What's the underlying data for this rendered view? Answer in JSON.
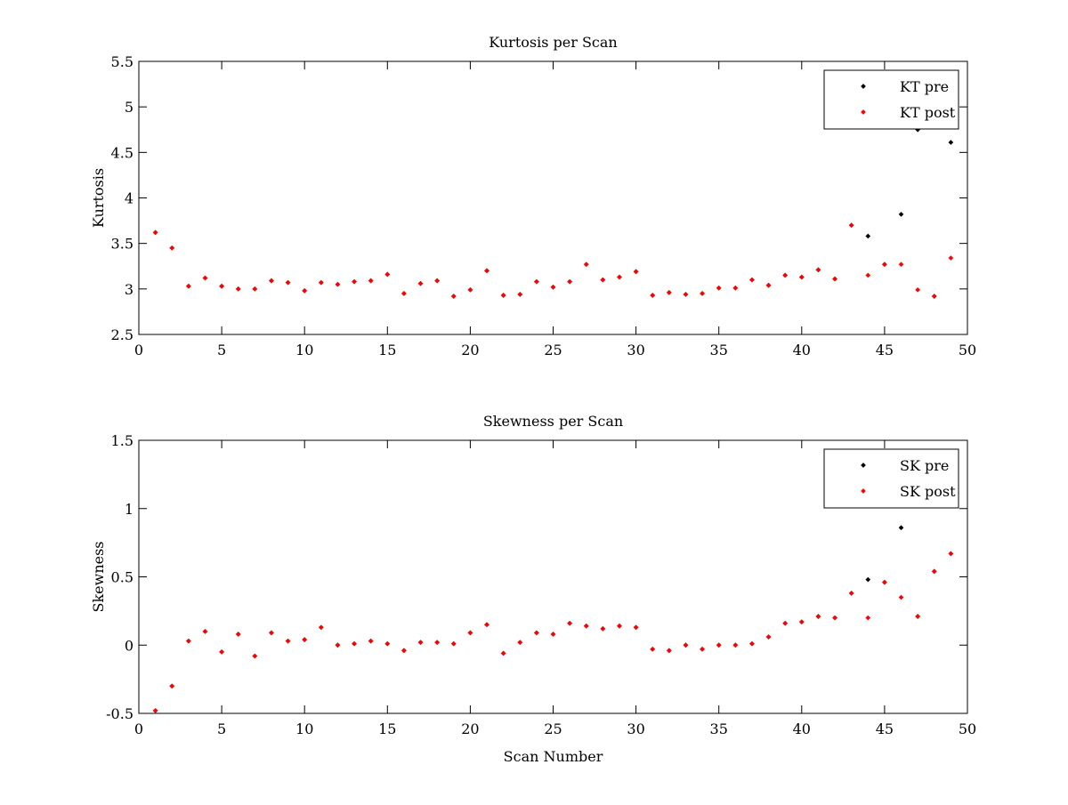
{
  "chart_data": [
    {
      "type": "scatter",
      "title": "Kurtosis per Scan",
      "xlabel": "",
      "ylabel": "Kurtosis",
      "xlim": [
        0,
        50
      ],
      "ylim": [
        2.5,
        5.5
      ],
      "xticks": [
        "0",
        "5",
        "10",
        "15",
        "20",
        "25",
        "30",
        "35",
        "40",
        "45",
        "50"
      ],
      "yticks": [
        "2.5",
        "3",
        "3.5",
        "4",
        "4.5",
        "5",
        "5.5"
      ],
      "legend_position": "top-right",
      "grid": false,
      "series": [
        {
          "name": "KT pre",
          "color": "#000000",
          "x": [
            1,
            2,
            3,
            4,
            5,
            6,
            7,
            8,
            9,
            10,
            11,
            12,
            13,
            14,
            15,
            16,
            17,
            18,
            19,
            20,
            21,
            22,
            23,
            24,
            25,
            26,
            27,
            28,
            29,
            30,
            31,
            32,
            33,
            34,
            35,
            36,
            37,
            38,
            39,
            40,
            41,
            42,
            43,
            44,
            45,
            46,
            47,
            48,
            49
          ],
          "y": [
            3.62,
            3.45,
            3.03,
            3.12,
            3.03,
            3.0,
            3.0,
            3.09,
            3.07,
            2.98,
            3.07,
            3.05,
            3.08,
            3.09,
            3.16,
            2.95,
            3.06,
            3.09,
            2.92,
            2.99,
            3.2,
            2.93,
            2.94,
            3.08,
            3.02,
            3.08,
            3.27,
            3.1,
            3.13,
            3.19,
            2.93,
            2.96,
            2.94,
            2.95,
            3.01,
            3.01,
            3.1,
            3.04,
            3.15,
            3.13,
            3.21,
            3.11,
            3.7,
            3.58,
            3.27,
            3.82,
            4.75,
            2.92,
            4.61
          ]
        },
        {
          "name": "KT post",
          "color": "#ff0000",
          "x": [
            1,
            2,
            3,
            4,
            5,
            6,
            7,
            8,
            9,
            10,
            11,
            12,
            13,
            14,
            15,
            16,
            17,
            18,
            19,
            20,
            21,
            22,
            23,
            24,
            25,
            26,
            27,
            28,
            29,
            30,
            31,
            32,
            33,
            34,
            35,
            36,
            37,
            38,
            39,
            40,
            41,
            42,
            43,
            44,
            45,
            46,
            47,
            48,
            49
          ],
          "y": [
            3.62,
            3.45,
            3.03,
            3.12,
            3.03,
            3.0,
            3.0,
            3.09,
            3.07,
            2.98,
            3.07,
            3.05,
            3.08,
            3.09,
            3.16,
            2.95,
            3.06,
            3.09,
            2.92,
            2.99,
            3.2,
            2.93,
            2.94,
            3.08,
            3.02,
            3.08,
            3.27,
            3.1,
            3.13,
            3.19,
            2.93,
            2.96,
            2.94,
            2.95,
            3.01,
            3.01,
            3.1,
            3.04,
            3.15,
            3.13,
            3.21,
            3.11,
            3.7,
            3.15,
            3.27,
            3.27,
            2.99,
            2.92,
            3.34
          ]
        }
      ]
    },
    {
      "type": "scatter",
      "title": "Skewness per Scan",
      "xlabel": "Scan Number",
      "ylabel": "Skewness",
      "xlim": [
        0,
        50
      ],
      "ylim": [
        -0.5,
        1.5
      ],
      "xticks": [
        "0",
        "5",
        "10",
        "15",
        "20",
        "25",
        "30",
        "35",
        "40",
        "45",
        "50"
      ],
      "yticks": [
        "-0.5",
        "0",
        "0.5",
        "1",
        "1.5"
      ],
      "legend_position": "top-right",
      "grid": false,
      "series": [
        {
          "name": "SK pre",
          "color": "#000000",
          "x": [
            1,
            2,
            3,
            4,
            5,
            6,
            7,
            8,
            9,
            10,
            11,
            12,
            13,
            14,
            15,
            16,
            17,
            18,
            19,
            20,
            21,
            22,
            23,
            24,
            25,
            26,
            27,
            28,
            29,
            30,
            31,
            32,
            33,
            34,
            35,
            36,
            37,
            38,
            39,
            40,
            41,
            42,
            43,
            44,
            45,
            46,
            47,
            48,
            49
          ],
          "y": [
            -0.48,
            -0.3,
            0.03,
            0.1,
            -0.05,
            0.08,
            -0.08,
            0.09,
            0.03,
            0.04,
            0.13,
            0.0,
            0.01,
            0.03,
            0.01,
            -0.04,
            0.02,
            0.02,
            0.01,
            0.09,
            0.15,
            -0.06,
            0.02,
            0.09,
            0.08,
            0.16,
            0.14,
            0.12,
            0.14,
            0.13,
            -0.03,
            -0.04,
            0.0,
            -0.03,
            0.0,
            0.0,
            0.01,
            0.06,
            0.16,
            0.17,
            0.21,
            0.2,
            0.38,
            0.48,
            0.46,
            0.86,
            0.21,
            0.54,
            0.67
          ]
        },
        {
          "name": "SK post",
          "color": "#ff0000",
          "x": [
            1,
            2,
            3,
            4,
            5,
            6,
            7,
            8,
            9,
            10,
            11,
            12,
            13,
            14,
            15,
            16,
            17,
            18,
            19,
            20,
            21,
            22,
            23,
            24,
            25,
            26,
            27,
            28,
            29,
            30,
            31,
            32,
            33,
            34,
            35,
            36,
            37,
            38,
            39,
            40,
            41,
            42,
            43,
            44,
            45,
            46,
            47,
            48,
            49
          ],
          "y": [
            -0.48,
            -0.3,
            0.03,
            0.1,
            -0.05,
            0.08,
            -0.08,
            0.09,
            0.03,
            0.04,
            0.13,
            0.0,
            0.01,
            0.03,
            0.01,
            -0.04,
            0.02,
            0.02,
            0.01,
            0.09,
            0.15,
            -0.06,
            0.02,
            0.09,
            0.08,
            0.16,
            0.14,
            0.12,
            0.14,
            0.13,
            -0.03,
            -0.04,
            0.0,
            -0.03,
            0.0,
            0.0,
            0.01,
            0.06,
            0.16,
            0.17,
            0.21,
            0.2,
            0.38,
            0.2,
            0.46,
            0.35,
            0.21,
            0.54,
            0.67
          ]
        }
      ]
    }
  ]
}
